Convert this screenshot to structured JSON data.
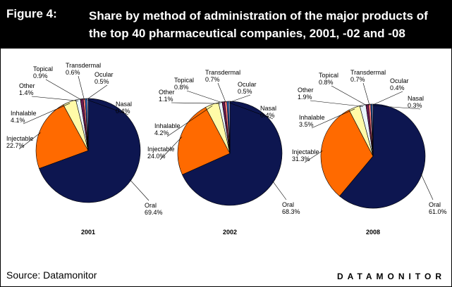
{
  "header": {
    "figure_label": "Figure 4:",
    "title": "Share by method of administration of the major products of the top 40 pharmaceutical companies, 2001, -02 and -08"
  },
  "footer": {
    "source": "Source: Datamonitor",
    "brand": "DATAMONITOR"
  },
  "colors": {
    "Oral": "#0d1650",
    "Injectable": "#ff6a00",
    "Inhalable": "#fffaa8",
    "Other": "#eaf6ff",
    "Topical": "#6b1a52",
    "Transdermal": "#ff7f7f",
    "Ocular": "#1a6fd0",
    "Nasal": "#c9c9f5"
  },
  "chart_data": [
    {
      "type": "pie",
      "title": "2001",
      "categories": [
        "Oral",
        "Injectable",
        "Inhalable",
        "Other",
        "Topical",
        "Transdermal",
        "Ocular",
        "Nasal"
      ],
      "values": [
        69.4,
        22.7,
        4.1,
        1.4,
        0.9,
        0.6,
        0.5,
        0.4
      ],
      "labels": [
        "69.4%",
        "22.7%",
        "4.1%",
        "1.4%",
        "0.9%",
        "0.6%",
        "0.5%",
        "0.4%"
      ]
    },
    {
      "type": "pie",
      "title": "2002",
      "categories": [
        "Oral",
        "Injectable",
        "Inhalable",
        "Other",
        "Topical",
        "Transdermal",
        "Ocular",
        "Nasal"
      ],
      "values": [
        68.3,
        24.0,
        4.2,
        1.1,
        0.8,
        0.7,
        0.5,
        0.4
      ],
      "labels": [
        "68.3%",
        "24.0%",
        "4.2%",
        "1.1%",
        "0.8%",
        "0.7%",
        "0.5%",
        "0.4%"
      ]
    },
    {
      "type": "pie",
      "title": "2008",
      "categories": [
        "Oral",
        "Injectable",
        "Inhalable",
        "Other",
        "Topical",
        "Transdermal",
        "Ocular",
        "Nasal"
      ],
      "values": [
        61.0,
        31.3,
        3.5,
        1.9,
        0.8,
        0.7,
        0.4,
        0.3
      ],
      "labels": [
        "61.0%",
        "31.3%",
        "3.5%",
        "1.9%",
        "0.8%",
        "0.7%",
        "0.4%",
        "0.3%"
      ]
    }
  ]
}
